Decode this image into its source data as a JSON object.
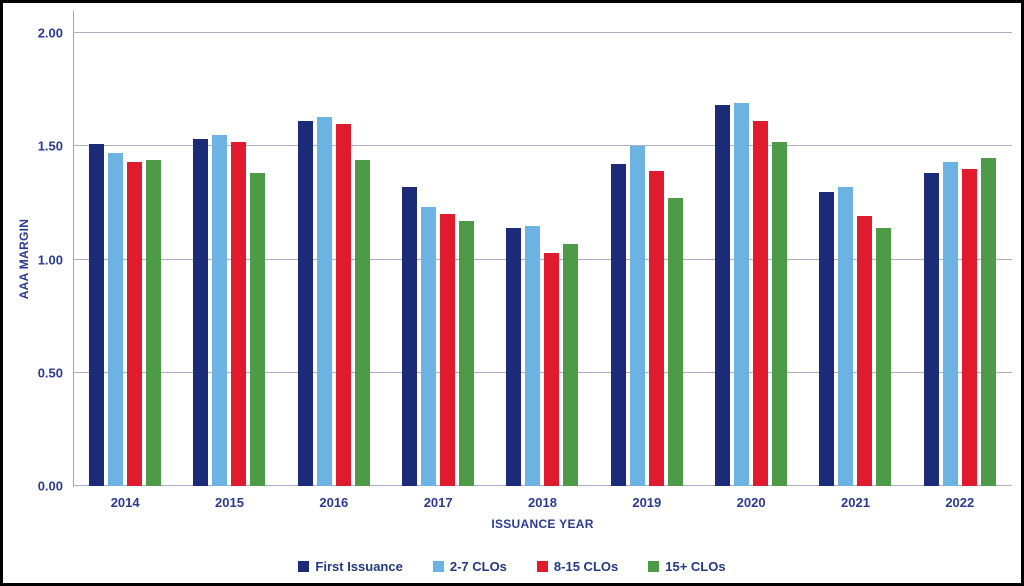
{
  "chart_data": {
    "type": "bar",
    "title": "",
    "categories": [
      "2014",
      "2015",
      "2016",
      "2017",
      "2018",
      "2019",
      "2020",
      "2021",
      "2022"
    ],
    "series": [
      {
        "name": "First Issuance",
        "color_key": "navy",
        "values": [
          1.51,
          1.53,
          1.61,
          1.32,
          1.14,
          1.42,
          1.68,
          1.3,
          1.38
        ]
      },
      {
        "name": "2-7 CLOs",
        "color_key": "light_blue",
        "values": [
          1.47,
          1.55,
          1.63,
          1.23,
          1.15,
          1.5,
          1.69,
          1.32,
          1.43
        ]
      },
      {
        "name": "8-15 CLOs",
        "color_key": "red",
        "values": [
          1.43,
          1.52,
          1.6,
          1.2,
          1.03,
          1.39,
          1.61,
          1.19,
          1.4
        ]
      },
      {
        "name": "15+ CLOs",
        "color_key": "green",
        "values": [
          1.44,
          1.38,
          1.44,
          1.17,
          1.07,
          1.27,
          1.52,
          1.14,
          1.45
        ]
      }
    ],
    "xlabel": "ISSUANCE YEAR",
    "ylabel": "AAA MARGIN",
    "ylim": [
      0,
      2.0
    ],
    "yticks": [
      "0.00",
      "0.50",
      "1.00",
      "1.50",
      "2.00"
    ],
    "grid": true,
    "legend_position": "bottom"
  },
  "colors": {
    "navy": "#1b2b78",
    "light_blue": "#6cb2e3",
    "red": "#df1b2d",
    "green": "#4e9b47",
    "text": "#2c3b8f",
    "gridline": "#adafc8",
    "border": "#000000",
    "background": "#ffffff"
  }
}
